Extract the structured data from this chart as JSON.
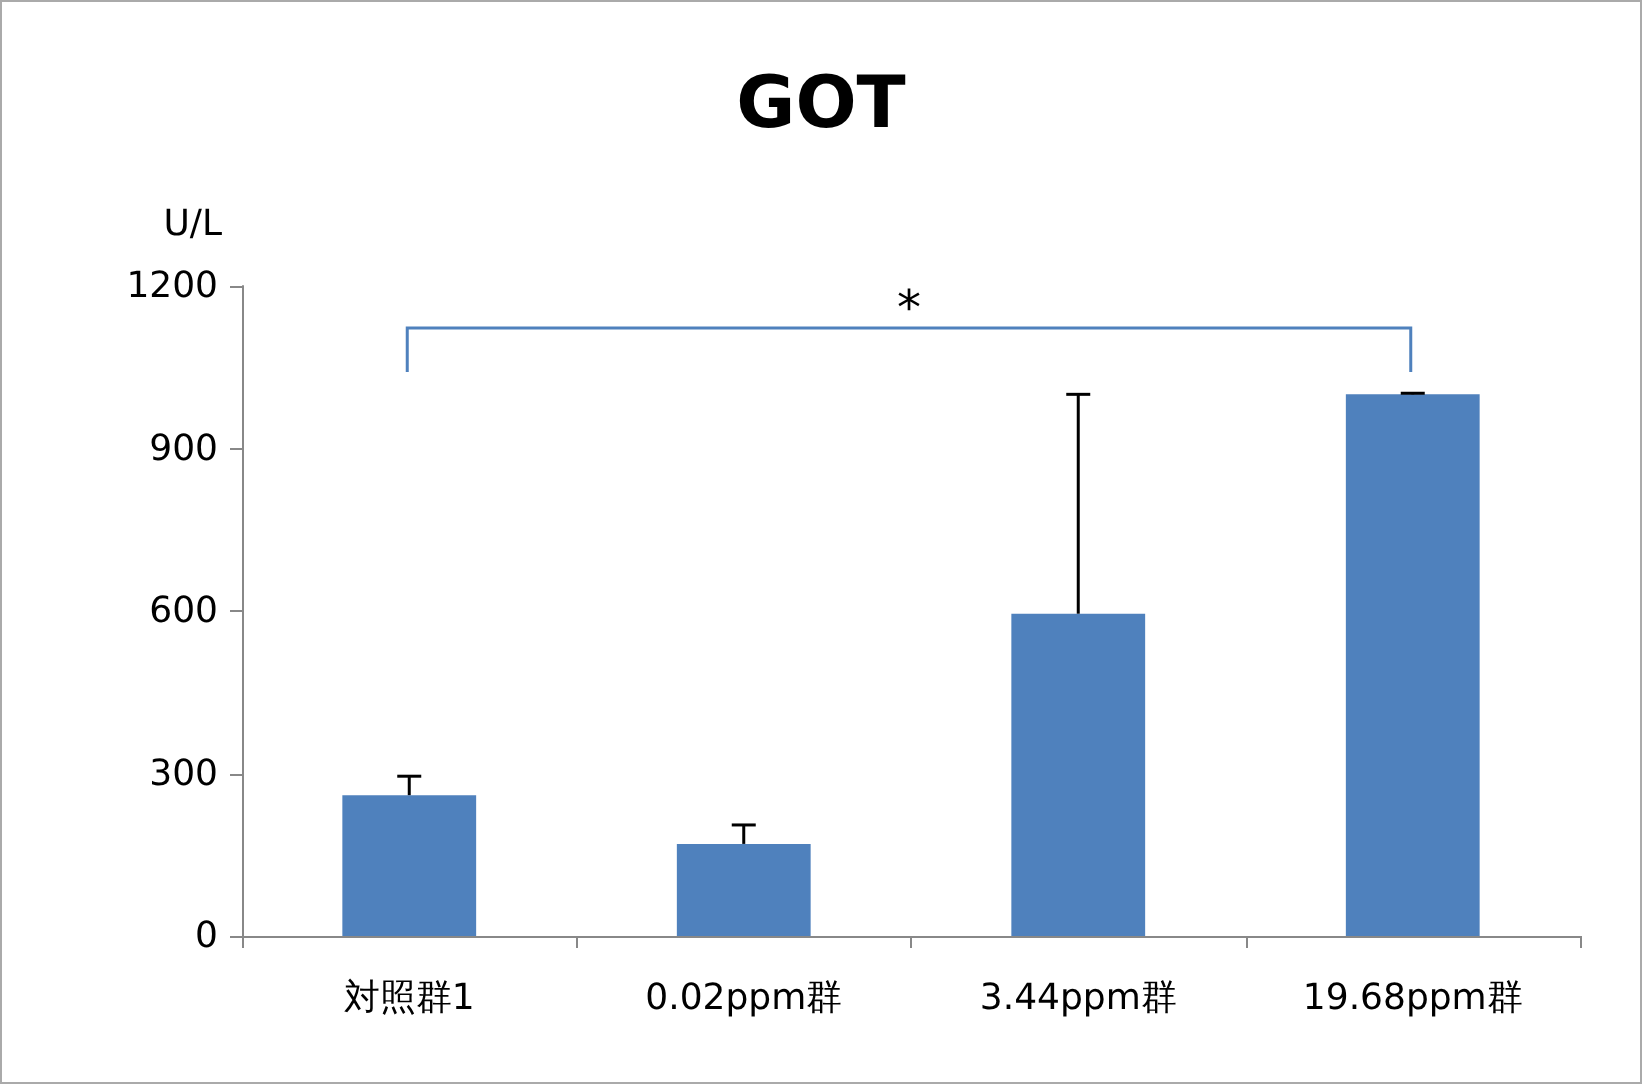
{
  "chart_data": {
    "type": "bar",
    "title": "GOT",
    "ylabel": "U/L",
    "categories": [
      "対照群1",
      "0.02ppm群",
      "3.44ppm群",
      "19.68ppm群"
    ],
    "values": [
      260,
      170,
      595,
      1000
    ],
    "errors": [
      [
        260,
        295
      ],
      [
        170,
        205
      ],
      [
        595,
        1000
      ],
      [
        1000,
        1002
      ]
    ],
    "color": "#4f81bd",
    "ylim": [
      0,
      1200
    ],
    "yticks": [
      0,
      300,
      600,
      900,
      1200
    ],
    "grid": false,
    "annotations": [
      "*"
    ]
  }
}
